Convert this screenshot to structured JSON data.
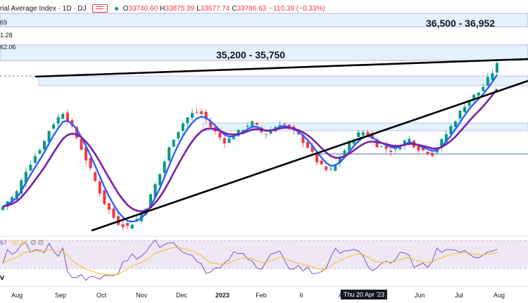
{
  "header": {
    "title": "rial Average Index · 1D · DJ",
    "open_label": "O",
    "open": "33740.60",
    "high_label": "H",
    "high": "33875.39",
    "low_label": "L",
    "low": "33677.74",
    "close_label": "C",
    "close": "33786.63",
    "change": "−110.39 (−0.33%)"
  },
  "side_values": {
    "a": "69",
    "b": "1.28",
    "c": "62.06"
  },
  "zones": {
    "upper": "36,500 - 36,952",
    "lower": "35,200 - 35,750"
  },
  "indicator": {
    "rsi_value": "67",
    "ma_value": "70.20",
    "extra": "∅  ∅"
  },
  "bottom_left": "v",
  "xaxis": {
    "ticks": [
      "Aug",
      "Sep",
      "Oct",
      "Nov",
      "Dec",
      "2023",
      "Feb",
      "6",
      "A",
      "Jun",
      "Jul",
      "Aug"
    ],
    "cursor": "Thu 20 Apr '23"
  },
  "colors": {
    "up": "#089981",
    "down": "#f23645",
    "ema_fast": "#2962ff",
    "ema_slow": "#7b1fa2",
    "zone_fill": "#e3f2fd",
    "zone_border": "#b39ddb",
    "rsi": "#7e57c2",
    "rsi_ma": "#f5c518",
    "rsi_band": "#ede7f6",
    "trend": "#000000"
  },
  "chart_data": {
    "type": "candlestick",
    "price_range": [
      31200,
      37200
    ],
    "series_prices": [
      31900,
      32050,
      32150,
      32300,
      32600,
      32900,
      33100,
      33300,
      33500,
      33700,
      34000,
      34200,
      34350,
      34500,
      34300,
      34050,
      33800,
      33500,
      33200,
      32900,
      32600,
      32300,
      32000,
      31800,
      31600,
      31450,
      31400,
      31350,
      31450,
      31550,
      31700,
      31900,
      32200,
      32500,
      32800,
      33150,
      33500,
      33800,
      34000,
      34200,
      34350,
      34450,
      34500,
      34450,
      34300,
      34100,
      33950,
      33800,
      33700,
      33750,
      33850,
      33950,
      34050,
      34150,
      34200,
      34100,
      33950,
      33900,
      34000,
      34100,
      34200,
      34150,
      34050,
      33950,
      33850,
      33700,
      33550,
      33350,
      33150,
      33000,
      32900,
      32900,
      33050,
      33250,
      33450,
      33650,
      33800,
      33900,
      33950,
      33900,
      33750,
      33600,
      33550,
      33500,
      33450,
      33500,
      33600,
      33700,
      33750,
      33600,
      33500,
      33450,
      33400,
      33350,
      33500,
      33700,
      33900,
      34100,
      34300,
      34500,
      34700,
      34850,
      34950,
      35050,
      35200,
      35400,
      35600,
      35800
    ],
    "ranges": [
      {
        "label": "36,500 - 36,952",
        "from": 36500,
        "to": 36952
      },
      {
        "label": "35,200 - 35,750",
        "from": 35200,
        "to": 35750
      }
    ],
    "rsi_range": [
      0,
      100
    ]
  }
}
